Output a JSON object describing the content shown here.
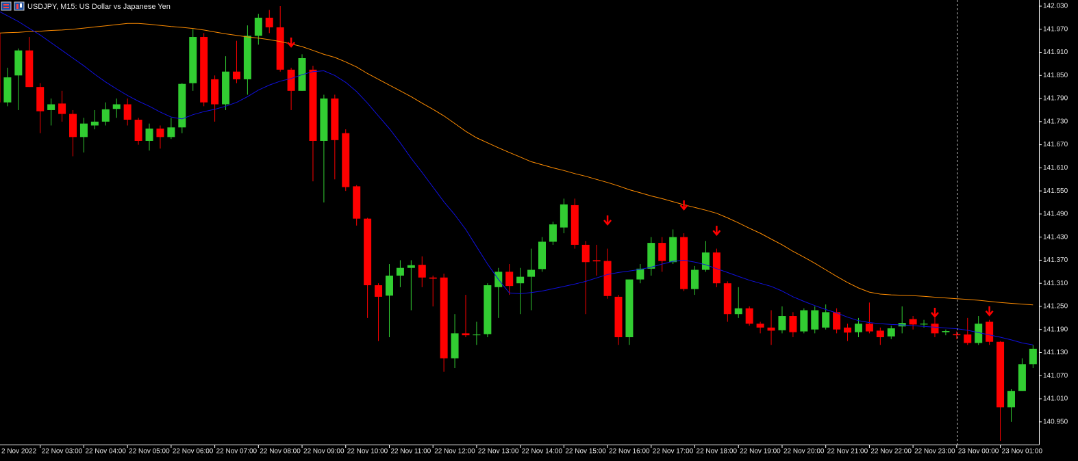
{
  "chart_data": {
    "type": "candlestick",
    "title": "USDJPY, M15:  US Dollar vs Japanese Yen",
    "categories": [
      "2 Nov 2022",
      null,
      null,
      null,
      "22 Nov 03:00",
      null,
      null,
      null,
      "22 Nov 04:00",
      null,
      null,
      null,
      "22 Nov 05:00",
      null,
      null,
      null,
      "22 Nov 06:00",
      null,
      null,
      null,
      "22 Nov 07:00",
      null,
      null,
      null,
      "22 Nov 08:00",
      null,
      null,
      null,
      "22 Nov 09:00",
      null,
      null,
      null,
      "22 Nov 10:00",
      null,
      null,
      null,
      "22 Nov 11:00",
      null,
      null,
      null,
      "22 Nov 12:00",
      null,
      null,
      null,
      "22 Nov 13:00",
      null,
      null,
      null,
      "22 Nov 14:00",
      null,
      null,
      null,
      "22 Nov 15:00",
      null,
      null,
      null,
      "22 Nov 16:00",
      null,
      null,
      null,
      "22 Nov 17:00",
      null,
      null,
      null,
      "22 Nov 18:00",
      null,
      null,
      null,
      "22 Nov 19:00",
      null,
      null,
      null,
      "22 Nov 20:00",
      null,
      null,
      null,
      "22 Nov 21:00",
      null,
      null,
      null,
      "22 Nov 22:00",
      null,
      null,
      null,
      "22 Nov 23:00",
      null,
      null,
      null,
      "23 Nov 00:00",
      null,
      null,
      null,
      "23 Nov 01:00",
      null,
      null,
      null
    ],
    "open": [
      141.96,
      141.78,
      141.85,
      141.915,
      141.82,
      141.76,
      141.777,
      141.75,
      141.69,
      141.72,
      141.73,
      141.763,
      141.775,
      141.735,
      141.68,
      141.712,
      141.69,
      141.715,
      141.83,
      141.95,
      141.84,
      141.775,
      141.86,
      141.84,
      141.953,
      142.0,
      141.975,
      141.865,
      141.81,
      141.865,
      141.68,
      141.79,
      141.7,
      141.562,
      141.478,
      141.305,
      141.278,
      141.33,
      141.35,
      141.358,
      141.325,
      141.325,
      141.115,
      141.18,
      141.175,
      141.178,
      141.3,
      141.34,
      141.31,
      141.327,
      141.347,
      141.418,
      141.455,
      141.513,
      141.41,
      141.37,
      141.368,
      141.275,
      141.17,
      141.32,
      141.348,
      141.415,
      141.365,
      141.43,
      141.295,
      141.345,
      141.39,
      141.31,
      141.23,
      141.245,
      141.205,
      141.195,
      141.188,
      141.225,
      141.185,
      141.19,
      141.195,
      141.235,
      141.195,
      141.183,
      141.205,
      141.187,
      141.172,
      141.198,
      141.217,
      141.203,
      141.205,
      141.183,
      141.178,
      141.177,
      141.155,
      141.21,
      141.158,
      140.988,
      141.03,
      141.1
    ],
    "high": [
      142.0,
      141.87,
      141.92,
      141.95,
      141.83,
      141.79,
      141.81,
      141.76,
      141.74,
      141.76,
      141.78,
      141.79,
      141.79,
      141.74,
      141.725,
      141.72,
      141.74,
      141.83,
      141.97,
      141.96,
      141.85,
      141.9,
      141.94,
      141.98,
      142.01,
      142.02,
      142.03,
      141.87,
      141.905,
      141.875,
      141.8,
      141.8,
      141.71,
      141.565,
      141.48,
      141.31,
      141.36,
      141.37,
      141.37,
      141.38,
      141.33,
      141.335,
      141.23,
      141.28,
      141.21,
      141.31,
      141.35,
      141.36,
      141.35,
      141.4,
      141.43,
      141.47,
      141.53,
      141.53,
      141.42,
      141.41,
      141.4,
      141.28,
      141.32,
      141.36,
      141.43,
      141.43,
      141.45,
      141.44,
      141.355,
      141.42,
      141.4,
      141.315,
      141.3,
      141.25,
      141.21,
      141.24,
      141.25,
      141.235,
      141.245,
      141.25,
      141.255,
      141.245,
      141.205,
      141.22,
      141.26,
      141.195,
      141.2,
      141.25,
      141.225,
      141.215,
      141.22,
      141.19,
      141.185,
      141.22,
      141.225,
      141.215,
      141.16,
      141.035,
      141.115,
      141.15
    ],
    "low": [
      141.77,
      141.77,
      141.76,
      141.82,
      141.7,
      141.72,
      141.73,
      141.64,
      141.65,
      141.71,
      141.72,
      141.74,
      141.72,
      141.67,
      141.655,
      141.66,
      141.685,
      141.7,
      141.81,
      141.77,
      141.73,
      141.76,
      141.83,
      141.8,
      141.93,
      141.96,
      141.86,
      141.76,
      141.81,
      141.575,
      141.52,
      141.58,
      141.55,
      141.46,
      141.22,
      141.16,
      141.17,
      141.3,
      141.24,
      141.3,
      141.25,
      141.08,
      141.09,
      141.17,
      141.15,
      141.17,
      141.22,
      141.28,
      141.23,
      141.24,
      141.34,
      141.41,
      141.44,
      141.4,
      141.23,
      141.33,
      141.27,
      141.15,
      141.15,
      141.31,
      141.33,
      141.34,
      141.36,
      141.29,
      141.28,
      141.34,
      141.3,
      141.21,
      141.22,
      141.2,
      141.18,
      141.15,
      141.18,
      141.17,
      141.18,
      141.18,
      141.19,
      141.18,
      141.16,
      141.17,
      141.18,
      141.15,
      141.165,
      141.18,
      141.19,
      141.195,
      141.17,
      141.175,
      141.165,
      141.15,
      141.15,
      141.15,
      140.9,
      140.95,
      141.03,
      141.09
    ],
    "close": [
      141.78,
      141.845,
      141.915,
      141.82,
      141.757,
      141.775,
      141.75,
      141.69,
      141.725,
      141.73,
      141.762,
      141.775,
      141.735,
      141.68,
      141.712,
      141.69,
      141.715,
      141.828,
      141.95,
      141.78,
      141.775,
      141.86,
      141.84,
      141.953,
      142.0,
      141.975,
      141.865,
      141.81,
      141.895,
      141.68,
      141.79,
      141.682,
      141.56,
      141.478,
      141.305,
      141.275,
      141.33,
      141.35,
      141.357,
      141.325,
      141.322,
      141.115,
      141.18,
      141.175,
      141.177,
      141.305,
      141.34,
      141.303,
      141.327,
      141.345,
      141.418,
      141.463,
      141.515,
      141.41,
      141.365,
      141.367,
      141.277,
      141.17,
      141.32,
      141.348,
      141.415,
      141.368,
      141.43,
      141.295,
      141.345,
      141.39,
      141.31,
      141.23,
      141.245,
      141.205,
      141.195,
      141.187,
      141.225,
      141.183,
      141.24,
      141.24,
      141.235,
      141.19,
      141.182,
      141.205,
      141.185,
      141.17,
      141.193,
      141.207,
      141.203,
      141.205,
      141.18,
      141.186,
      141.175,
      141.155,
      141.205,
      141.158,
      140.988,
      141.03,
      141.1,
      141.14
    ],
    "up_color": "#32cd32",
    "down_color": "#ff0000",
    "series": [
      {
        "color": "#ff8c00",
        "values": [
          141.96,
          141.961,
          141.962,
          141.964,
          141.965,
          141.967,
          141.968,
          141.97,
          141.973,
          141.976,
          141.979,
          141.982,
          141.985,
          141.985,
          141.983,
          141.98,
          141.977,
          141.975,
          141.972,
          141.968,
          141.963,
          141.958,
          141.954,
          141.95,
          141.947,
          141.943,
          141.938,
          141.932,
          141.925,
          141.915,
          141.905,
          141.897,
          141.885,
          141.872,
          141.855,
          141.84,
          141.825,
          141.81,
          141.795,
          141.778,
          141.762,
          141.745,
          141.725,
          141.705,
          141.688,
          141.675,
          141.662,
          141.65,
          141.638,
          141.626,
          141.618,
          141.61,
          141.603,
          141.595,
          141.588,
          141.58,
          141.572,
          141.563,
          141.553,
          141.545,
          141.537,
          141.53,
          141.522,
          141.514,
          141.507,
          141.5,
          141.492,
          141.48,
          141.467,
          141.453,
          141.44,
          141.425,
          141.41,
          141.393,
          141.378,
          141.362,
          141.345,
          141.328,
          141.312,
          141.298,
          141.287,
          141.282,
          141.28,
          141.279,
          141.278,
          141.276,
          141.274,
          141.272,
          141.27,
          141.268,
          141.266,
          141.263,
          141.26,
          141.258,
          141.256,
          141.254
        ]
      },
      {
        "color": "#1010e0",
        "values": [
          142.02,
          142.005,
          141.99,
          141.972,
          141.955,
          141.935,
          141.915,
          141.895,
          141.875,
          141.853,
          141.833,
          141.815,
          141.798,
          141.783,
          141.77,
          141.755,
          141.742,
          141.737,
          141.748,
          141.756,
          141.762,
          141.77,
          141.78,
          141.795,
          141.812,
          141.825,
          141.835,
          141.842,
          141.852,
          141.86,
          141.862,
          141.85,
          141.832,
          141.808,
          141.778,
          141.745,
          141.712,
          141.675,
          141.635,
          141.598,
          141.56,
          141.522,
          141.488,
          141.45,
          141.405,
          141.36,
          141.32,
          141.285,
          141.283,
          141.286,
          141.29,
          141.296,
          141.302,
          141.308,
          141.315,
          141.324,
          141.333,
          141.338,
          141.342,
          141.346,
          141.352,
          141.36,
          141.367,
          141.37,
          141.365,
          141.358,
          141.348,
          141.338,
          141.328,
          141.318,
          141.31,
          141.302,
          141.29,
          141.275,
          141.263,
          141.252,
          141.242,
          141.233,
          141.222,
          141.213,
          141.208,
          141.205,
          141.203,
          141.202,
          141.2,
          141.198,
          141.196,
          141.194,
          141.192,
          141.188,
          141.182,
          141.176,
          141.17,
          141.163,
          141.155,
          141.15
        ]
      }
    ],
    "signals": {
      "color": "#ff0000",
      "values": [
        null,
        null,
        null,
        null,
        null,
        null,
        null,
        null,
        null,
        null,
        null,
        null,
        null,
        null,
        null,
        null,
        null,
        null,
        null,
        null,
        null,
        null,
        null,
        null,
        null,
        null,
        null,
        141.936,
        null,
        null,
        null,
        null,
        null,
        null,
        null,
        null,
        null,
        null,
        null,
        null,
        null,
        null,
        null,
        null,
        null,
        null,
        null,
        null,
        null,
        null,
        null,
        null,
        null,
        null,
        null,
        null,
        141.474,
        null,
        null,
        null,
        null,
        null,
        null,
        141.513,
        null,
        null,
        141.447,
        null,
        null,
        null,
        null,
        null,
        null,
        null,
        null,
        null,
        null,
        null,
        null,
        null,
        null,
        null,
        null,
        null,
        null,
        null,
        141.234,
        null,
        null,
        null,
        null,
        141.238,
        null,
        null,
        null,
        null
      ]
    },
    "ylim": [
      140.891,
      142.046
    ],
    "yticks": [
      {
        "value": 142.03,
        "label": "142.030"
      },
      {
        "value": 141.97,
        "label": "141.970"
      },
      {
        "value": 141.91,
        "label": "141.910"
      },
      {
        "value": 141.85,
        "label": "141.850"
      },
      {
        "value": 141.79,
        "label": "141.790"
      },
      {
        "value": 141.73,
        "label": "141.730"
      },
      {
        "value": 141.67,
        "label": "141.670"
      },
      {
        "value": 141.61,
        "label": "141.610"
      },
      {
        "value": 141.55,
        "label": "141.550"
      },
      {
        "value": 141.49,
        "label": "141.490"
      },
      {
        "value": 141.43,
        "label": "141.430"
      },
      {
        "value": 141.37,
        "label": "141.370"
      },
      {
        "value": 141.31,
        "label": "141.310"
      },
      {
        "value": 141.25,
        "label": "141.250"
      },
      {
        "value": 141.19,
        "label": "141.190"
      },
      {
        "value": 141.13,
        "label": "141.130"
      },
      {
        "value": 141.07,
        "label": "141.070"
      },
      {
        "value": 141.01,
        "label": "141.010"
      },
      {
        "value": 140.95,
        "label": "140.950"
      }
    ]
  }
}
